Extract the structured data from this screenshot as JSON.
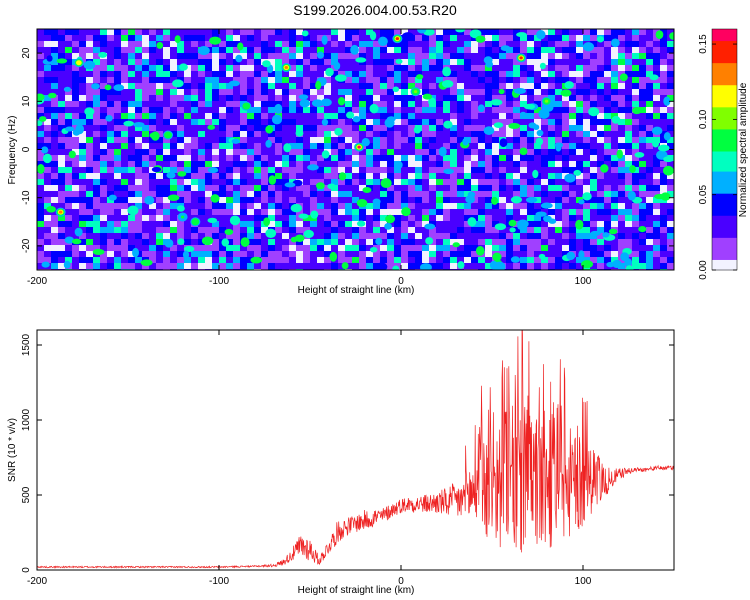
{
  "figure": {
    "title": "S199.2026.004.00.53.R20"
  },
  "chart_data": [
    {
      "type": "heatmap",
      "title": "S199.2026.004.00.53.R20",
      "xlabel": "Height of straight line (km)",
      "ylabel": "Frequency (Hz)",
      "xlim": [
        -200,
        150
      ],
      "ylim": [
        -25,
        25
      ],
      "x_ticks": [
        -200,
        -100,
        0,
        100
      ],
      "y_ticks": [
        -20,
        -10,
        0,
        10,
        20
      ],
      "colorbar": {
        "label": "Normalized spectral amplitude",
        "range": [
          0.0,
          0.16
        ],
        "ticks": [
          0.0,
          0.05,
          0.1,
          0.15
        ],
        "tick_labels": [
          "0.00",
          "0.05",
          "0.10",
          "0.15"
        ],
        "colormap": [
          "#f2f2ff",
          "#a040ff",
          "#4a00ff",
          "#0000ff",
          "#00b0ff",
          "#00ffc0",
          "#00ff40",
          "#80ff00",
          "#ffff00",
          "#ff8000",
          "#ff2000",
          "#ff0060"
        ]
      },
      "peaks": [
        {
          "x": -2,
          "y": 23,
          "v": 0.15
        },
        {
          "x": 66,
          "y": 19,
          "v": 0.15
        },
        {
          "x": -23,
          "y": 0.5,
          "v": 0.16
        },
        {
          "x": -63,
          "y": 17,
          "v": 0.13
        },
        {
          "x": -177,
          "y": 18,
          "v": 0.12
        },
        {
          "x": -187,
          "y": -13,
          "v": 0.13
        },
        {
          "x": 8,
          "y": 12,
          "v": 0.1
        },
        {
          "x": 80,
          "y": 10,
          "v": 0.1
        },
        {
          "x": -128,
          "y": 3,
          "v": 0.09
        },
        {
          "x": -85,
          "y": 9,
          "v": 0.09
        },
        {
          "x": -113,
          "y": -15,
          "v": 0.09
        },
        {
          "x": -120,
          "y": -14,
          "v": 0.08
        }
      ],
      "background_level": 0.03
    },
    {
      "type": "line",
      "xlabel": "Height of straight line (km)",
      "ylabel": "SNR (10 * v/v)",
      "xlim": [
        -200,
        150
      ],
      "ylim": [
        0,
        1600
      ],
      "x_ticks": [
        -200,
        -100,
        0,
        100
      ],
      "y_ticks": [
        0,
        500,
        1000,
        1500
      ],
      "color": "#ee2222",
      "series": [
        {
          "name": "SNR",
          "x": [
            -200,
            -180,
            -160,
            -140,
            -120,
            -100,
            -80,
            -70,
            -65,
            -60,
            -55,
            -50,
            -45,
            -40,
            -35,
            -30,
            -25,
            -20,
            -15,
            -10,
            -5,
            0,
            5,
            10,
            15,
            20,
            25,
            30,
            35,
            40,
            45,
            50,
            55,
            60,
            65,
            70,
            75,
            80,
            85,
            90,
            95,
            100,
            105,
            110,
            115,
            120,
            125,
            130,
            135,
            140,
            150
          ],
          "y_base": [
            20,
            20,
            20,
            20,
            20,
            20,
            25,
            30,
            50,
            100,
            160,
            140,
            60,
            150,
            250,
            290,
            310,
            330,
            350,
            360,
            400,
            430,
            440,
            440,
            440,
            450,
            450,
            460,
            470,
            500,
            520,
            540,
            540,
            540,
            540,
            540,
            540,
            540,
            540,
            540,
            540,
            540,
            550,
            570,
            600,
            640,
            660,
            670,
            670,
            680,
            680
          ],
          "y_amp": [
            10,
            10,
            10,
            10,
            10,
            10,
            10,
            20,
            40,
            80,
            180,
            160,
            60,
            100,
            150,
            120,
            120,
            140,
            130,
            110,
            100,
            100,
            110,
            120,
            130,
            160,
            200,
            250,
            330,
            500,
            700,
            800,
            900,
            1000,
            1050,
            1000,
            950,
            950,
            900,
            800,
            700,
            600,
            450,
            300,
            150,
            80,
            40,
            30,
            30,
            30,
            30
          ]
        }
      ]
    }
  ]
}
